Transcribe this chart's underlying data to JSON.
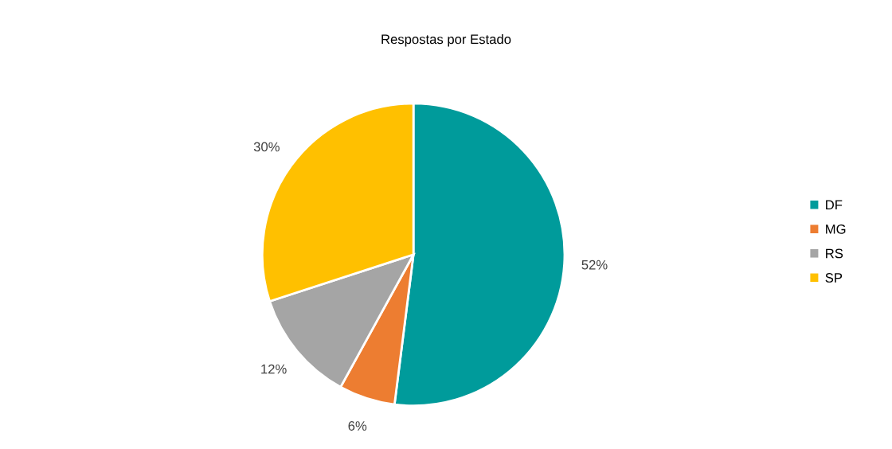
{
  "chart_data": {
    "type": "pie",
    "title": "Respostas por Estado",
    "categories": [
      "DF",
      "MG",
      "RS",
      "SP"
    ],
    "values": [
      52,
      6,
      12,
      30
    ],
    "value_labels": [
      "52%",
      "6%",
      "12%",
      "30%"
    ],
    "colors": [
      "#009b9b",
      "#ed7d31",
      "#a5a5a5",
      "#ffc000"
    ],
    "legend": "right"
  }
}
